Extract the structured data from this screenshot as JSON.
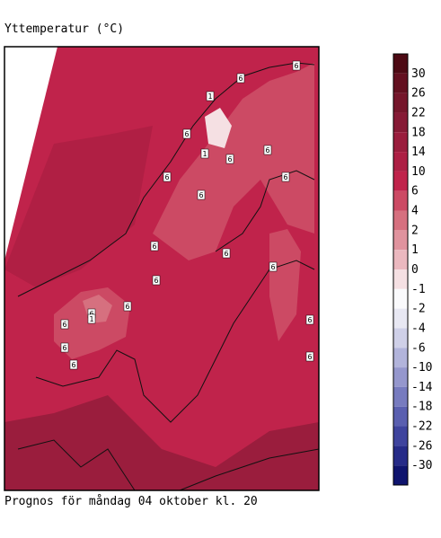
{
  "title": "Yttemperatur (°C)",
  "footer": "Prognos för måndag 04 oktober kl. 20",
  "legend": {
    "labels": [
      30,
      26,
      22,
      18,
      14,
      10,
      6,
      4,
      2,
      1,
      0,
      -1,
      -2,
      -4,
      -6,
      -10,
      -14,
      -18,
      -22,
      -26,
      -30
    ],
    "colors": [
      "#4d0a14",
      "#631020",
      "#75162b",
      "#861a35",
      "#9a1d3d",
      "#ad1f44",
      "#c0234b",
      "#cc4a64",
      "#d6707f",
      "#e0939e",
      "#ebb8bf",
      "#f5e0e3",
      "#fafafc",
      "#e8e8f3",
      "#cfd0e8",
      "#b2b4db",
      "#9597cd",
      "#777bbf",
      "#5a5fb0",
      "#3f449e",
      "#262b88",
      "#0f146e"
    ]
  },
  "map_labels": [
    6,
    6,
    1,
    6,
    1,
    6,
    6,
    6,
    6,
    6,
    6,
    6,
    6,
    6,
    6,
    6,
    6,
    1,
    6,
    6,
    6,
    6
  ]
}
